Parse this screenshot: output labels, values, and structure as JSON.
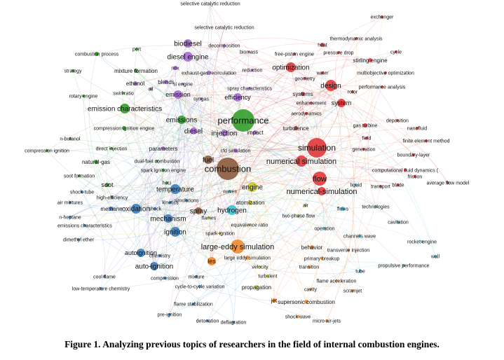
{
  "caption": "Figure 1. Analyzing previous topics of researchers in the field of internal combustion engines.",
  "colors": {
    "red": "#e0393b",
    "green": "#33a02c",
    "blue": "#3a7fc1",
    "purple": "#a66dd4",
    "cyan": "#3fc1d1",
    "yellow": "#c8c832",
    "orange": "#f08a2c",
    "brown": "#8c5a3c",
    "pink": "#e87fb0"
  },
  "network": {
    "nodes": [
      {
        "label": "selective catalytic reduction",
        "c": "red",
        "s": 0,
        "f": 7
      },
      {
        "label": "selective catalytic reduction",
        "c": "red",
        "s": 0,
        "f": 7
      },
      {
        "label": "exchanger",
        "c": "red",
        "s": 2,
        "f": 7
      },
      {
        "label": "thermodynamic analysis",
        "c": "red",
        "s": 2,
        "f": 7
      },
      {
        "label": "heat",
        "c": "red",
        "s": 3,
        "f": 7
      },
      {
        "label": "cycle",
        "c": "red",
        "s": 2,
        "f": 7
      },
      {
        "label": "biodiesel",
        "c": "purple",
        "s": 6,
        "f": 10
      },
      {
        "label": "decomposition",
        "c": "purple",
        "s": 2,
        "f": 7
      },
      {
        "label": "biomass",
        "c": "purple",
        "s": 1,
        "f": 7
      },
      {
        "label": "free-piston engine",
        "c": "red",
        "s": 2,
        "f": 7
      },
      {
        "label": "pressure drop",
        "c": "red",
        "s": 2,
        "f": 7
      },
      {
        "label": "stirling engine",
        "c": "red",
        "s": 3,
        "f": 8
      },
      {
        "label": "combustion process",
        "c": "green",
        "s": 3,
        "f": 7
      },
      {
        "label": "port",
        "c": "green",
        "s": 2,
        "f": 7
      },
      {
        "label": "diesel engine",
        "c": "purple",
        "s": 7,
        "f": 10
      },
      {
        "label": "optimization",
        "c": "red",
        "s": 7,
        "f": 10
      },
      {
        "label": "mixture formation",
        "c": "green",
        "s": 3,
        "f": 8
      },
      {
        "label": "strategy",
        "c": "green",
        "s": 2,
        "f": 7
      },
      {
        "label": "nox",
        "c": "purple",
        "s": 3,
        "f": 7
      },
      {
        "label": "reduction",
        "c": "purple",
        "s": 2,
        "f": 7
      },
      {
        "label": "water",
        "c": "red",
        "s": 2,
        "f": 7
      },
      {
        "label": "multiobjective optimization",
        "c": "red",
        "s": 2,
        "f": 7
      },
      {
        "label": "exhaust-gas recirculation",
        "c": "purple",
        "s": 3,
        "f": 7
      },
      {
        "label": "ethanol",
        "c": "purple",
        "s": 3,
        "f": 8
      },
      {
        "label": "blends",
        "c": "purple",
        "s": 3,
        "f": 8
      },
      {
        "label": "si engine",
        "c": "purple",
        "s": 2,
        "f": 7
      },
      {
        "label": "geometry",
        "c": "red",
        "s": 2,
        "f": 7
      },
      {
        "label": "design",
        "c": "red",
        "s": 8,
        "f": 10
      },
      {
        "label": "performance analysis",
        "c": "red",
        "s": 2,
        "f": 7
      },
      {
        "label": "oil",
        "c": "purple",
        "s": 2,
        "f": 7
      },
      {
        "label": "swirl ratio",
        "c": "green",
        "s": 2,
        "f": 7
      },
      {
        "label": "spray characteristics",
        "c": "purple",
        "s": 2,
        "f": 7
      },
      {
        "label": "rotary engine",
        "c": "green",
        "s": 2,
        "f": 7
      },
      {
        "label": "emission",
        "c": "purple",
        "s": 6,
        "f": 9
      },
      {
        "label": "syngas",
        "c": "purple",
        "s": 2,
        "f": 7
      },
      {
        "label": "efficiency",
        "c": "purple",
        "s": 6,
        "f": 9
      },
      {
        "label": "systems",
        "c": "red",
        "s": 3,
        "f": 8
      },
      {
        "label": "rotor",
        "c": "red",
        "s": 2,
        "f": 7
      },
      {
        "label": "system",
        "c": "red",
        "s": 6,
        "f": 9
      },
      {
        "label": "emission characteristics",
        "c": "green",
        "s": 7,
        "f": 10
      },
      {
        "label": "enhancement",
        "c": "red",
        "s": 2,
        "f": 7
      },
      {
        "label": "emissions",
        "c": "green",
        "s": 6,
        "f": 10
      },
      {
        "label": "performance",
        "c": "green",
        "s": 16,
        "f": 13
      },
      {
        "label": "aerodynamics",
        "c": "red",
        "s": 2,
        "f": 7
      },
      {
        "label": "deposition",
        "c": "red",
        "s": 2,
        "f": 7
      },
      {
        "label": "gas turbine",
        "c": "red",
        "s": 3,
        "f": 7
      },
      {
        "label": "nanofluid",
        "c": "red",
        "s": 2,
        "f": 7
      },
      {
        "label": "compression ignition engine",
        "c": "green",
        "s": 3,
        "f": 7
      },
      {
        "label": "diesel",
        "c": "purple",
        "s": 5,
        "f": 10
      },
      {
        "label": "injection",
        "c": "purple",
        "s": 5,
        "f": 10
      },
      {
        "label": "impact",
        "c": "purple",
        "s": 3,
        "f": 8
      },
      {
        "label": "turbulence",
        "c": "red",
        "s": 3,
        "f": 8
      },
      {
        "label": "field",
        "c": "red",
        "s": 2,
        "f": 7
      },
      {
        "label": "n-butanol",
        "c": "green",
        "s": 2,
        "f": 7
      },
      {
        "label": "finite element method",
        "c": "red",
        "s": 2,
        "f": 7
      },
      {
        "label": "compression ignition",
        "c": "green",
        "s": 2,
        "f": 7
      },
      {
        "label": "direct injection",
        "c": "green",
        "s": 2,
        "f": 7
      },
      {
        "label": "parameters",
        "c": "purple",
        "s": 3,
        "f": 8
      },
      {
        "label": "simulation",
        "c": "red",
        "s": 14,
        "f": 12
      },
      {
        "label": "generation",
        "c": "red",
        "s": 2,
        "f": 7
      },
      {
        "label": "boundary-layer",
        "c": "red",
        "s": 2,
        "f": 7
      },
      {
        "label": "cfd simulation",
        "c": "purple",
        "s": 3,
        "f": 7
      },
      {
        "label": "natural-gas",
        "c": "green",
        "s": 3,
        "f": 8
      },
      {
        "label": "dual-fuel combustion",
        "c": "green",
        "s": 2,
        "f": 7
      },
      {
        "label": "fuel",
        "c": "brown",
        "s": 6,
        "f": 10
      },
      {
        "label": "numerical simulation",
        "c": "red",
        "s": 8,
        "f": 11
      },
      {
        "label": "combustion",
        "c": "brown",
        "s": 16,
        "f": 13
      },
      {
        "label": "spark ignition engine",
        "c": "green",
        "s": 2,
        "f": 7
      },
      {
        "label": "soot formation",
        "c": "green",
        "s": 2,
        "f": 7
      },
      {
        "label": "flow",
        "c": "red",
        "s": 10,
        "f": 11
      },
      {
        "label": "computational fluid dynamics (",
        "c": "red",
        "s": 2,
        "f": 7
      },
      {
        "label": "numerical-simulation",
        "c": "red",
        "s": 6,
        "f": 11
      },
      {
        "label": "soot",
        "c": "green",
        "s": 3,
        "f": 9
      },
      {
        "label": "hcci",
        "c": "green",
        "s": 2,
        "f": 7
      },
      {
        "label": "engine",
        "c": "yellow",
        "s": 7,
        "f": 10
      },
      {
        "label": "liquid",
        "c": "cyan",
        "s": 2,
        "f": 7
      },
      {
        "label": "transport",
        "c": "red",
        "s": 2,
        "f": 7
      },
      {
        "label": "blade",
        "c": "red",
        "s": 2,
        "f": 7
      },
      {
        "label": "friction",
        "c": "red",
        "s": 2,
        "f": 7
      },
      {
        "label": "average flow model",
        "c": "red",
        "s": 2,
        "f": 7
      },
      {
        "label": "shock-tube",
        "c": "blue",
        "s": 2,
        "f": 7
      },
      {
        "label": "temperature",
        "c": "blue",
        "s": 7,
        "f": 10
      },
      {
        "label": "waves",
        "c": "cyan",
        "s": 2,
        "f": 7
      },
      {
        "label": "high-efficiency",
        "c": "blue",
        "s": 2,
        "f": 7
      },
      {
        "label": "simulations",
        "c": "blue",
        "s": 2,
        "f": 7
      },
      {
        "label": "atomization",
        "c": "yellow",
        "s": 3,
        "f": 8
      },
      {
        "label": "air mixtures",
        "c": "blue",
        "s": 2,
        "f": 7
      },
      {
        "label": "kinetics",
        "c": "blue",
        "s": 2,
        "f": 7
      },
      {
        "label": "air",
        "c": "yellow",
        "s": 2,
        "f": 7
      },
      {
        "label": "flows",
        "c": "cyan",
        "s": 3,
        "f": 7
      },
      {
        "label": "technologies",
        "c": "cyan",
        "s": 2,
        "f": 7
      },
      {
        "label": "methane",
        "c": "blue",
        "s": 3,
        "f": 8
      },
      {
        "label": "oxidation",
        "c": "blue",
        "s": 7,
        "f": 10
      },
      {
        "label": "shock",
        "c": "blue",
        "s": 2,
        "f": 7
      },
      {
        "label": "spray",
        "c": "brown",
        "s": 5,
        "f": 10
      },
      {
        "label": "hydrogen",
        "c": "cyan",
        "s": 7,
        "f": 10
      },
      {
        "label": "two-phase flow",
        "c": "yellow",
        "s": 2,
        "f": 7
      },
      {
        "label": "n-heptane",
        "c": "blue",
        "s": 2,
        "f": 7
      },
      {
        "label": "mechanism",
        "c": "blue",
        "s": 6,
        "f": 10
      },
      {
        "label": "flames",
        "c": "yellow",
        "s": 2,
        "f": 7
      },
      {
        "label": "cavitation",
        "c": "cyan",
        "s": 2,
        "f": 7
      },
      {
        "label": "emissions characteristics",
        "c": "blue",
        "s": 2,
        "f": 7
      },
      {
        "label": "equivalence ratio",
        "c": "yellow",
        "s": 2,
        "f": 7
      },
      {
        "label": "operation",
        "c": "cyan",
        "s": 2,
        "f": 7
      },
      {
        "label": "ignition",
        "c": "blue",
        "s": 7,
        "f": 10
      },
      {
        "label": "spark-ignition",
        "c": "yellow",
        "s": 2,
        "f": 7
      },
      {
        "label": "channels wave",
        "c": "cyan",
        "s": 2,
        "f": 7
      },
      {
        "label": "dimethyl ether",
        "c": "blue",
        "s": 2,
        "f": 7
      },
      {
        "label": "large-eddy simulation",
        "c": "orange",
        "s": 10,
        "f": 11
      },
      {
        "label": "behavior",
        "c": "orange",
        "s": 3,
        "f": 8
      },
      {
        "label": "transverse injection",
        "c": "orange",
        "s": 2,
        "f": 7
      },
      {
        "label": "rocket engine",
        "c": "cyan",
        "s": 2,
        "f": 7
      },
      {
        "label": "autoignition",
        "c": "blue",
        "s": 6,
        "f": 9
      },
      {
        "label": "chemistry",
        "c": "blue",
        "s": 2,
        "f": 7
      },
      {
        "label": "les",
        "c": "orange",
        "s": 6,
        "f": 9
      },
      {
        "label": "large eddy simulation",
        "c": "orange",
        "s": 3,
        "f": 7
      },
      {
        "label": "primary breakup",
        "c": "orange",
        "s": 2,
        "f": 7
      },
      {
        "label": "wall",
        "c": "cyan",
        "s": 2,
        "f": 7
      },
      {
        "label": "auto-ignition",
        "c": "blue",
        "s": 6,
        "f": 10
      },
      {
        "label": "velocity",
        "c": "yellow",
        "s": 1,
        "f": 7
      },
      {
        "label": "transition",
        "c": "orange",
        "s": 2,
        "f": 7
      },
      {
        "label": "propulsive performance",
        "c": "cyan",
        "s": 2,
        "f": 7
      },
      {
        "label": "tube",
        "c": "cyan",
        "s": 2,
        "f": 7
      },
      {
        "label": "cool flame",
        "c": "blue",
        "s": 2,
        "f": 7
      },
      {
        "label": "compression",
        "c": "blue",
        "s": 2,
        "f": 7
      },
      {
        "label": "mixture",
        "c": "blue",
        "s": 2,
        "f": 7
      },
      {
        "label": "turbulent",
        "c": "yellow",
        "s": 2,
        "f": 7
      },
      {
        "label": "flame acceleration",
        "c": "orange",
        "s": 2,
        "f": 7
      },
      {
        "label": "low-temperature chemistry",
        "c": "blue",
        "s": 2,
        "f": 7
      },
      {
        "label": "cycle-to-cycle variation",
        "c": "blue",
        "s": 2,
        "f": 7
      },
      {
        "label": "propagation",
        "c": "yellow",
        "s": 3,
        "f": 8
      },
      {
        "label": "cavity",
        "c": "orange",
        "s": 2,
        "f": 7
      },
      {
        "label": "scramjet",
        "c": "orange",
        "s": 2,
        "f": 7
      },
      {
        "label": "jet",
        "c": "orange",
        "s": 3,
        "f": 8
      },
      {
        "label": "supersonic combustion",
        "c": "orange",
        "s": 3,
        "f": 8
      },
      {
        "label": "flame stabilization",
        "c": "blue",
        "s": 2,
        "f": 7
      },
      {
        "label": "pre-ignition",
        "c": "blue",
        "s": 2,
        "f": 7
      },
      {
        "label": "shock wave",
        "c": "orange",
        "s": 2,
        "f": 7
      },
      {
        "label": "micro air-jets",
        "c": "orange",
        "s": 2,
        "f": 7
      },
      {
        "label": "detonation",
        "c": "blue",
        "s": 2,
        "f": 7
      },
      {
        "label": "deflagration",
        "c": "blue",
        "s": 2,
        "f": 7
      }
    ]
  }
}
